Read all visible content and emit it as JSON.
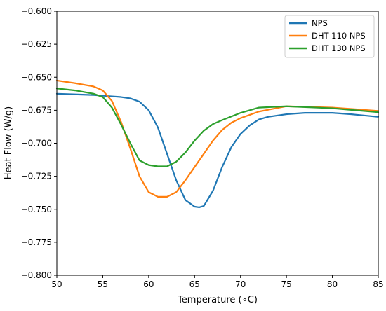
{
  "chart_data": {
    "type": "line",
    "title": "",
    "xlabel": "Temperature (∘C)",
    "ylabel": "Heat Flow (W/g)",
    "xlim": [
      50,
      85
    ],
    "ylim": [
      -0.8,
      -0.6
    ],
    "x_ticks": [
      50,
      55,
      60,
      65,
      70,
      75,
      80,
      85
    ],
    "y_ticks": [
      -0.8,
      -0.775,
      -0.75,
      -0.725,
      -0.7,
      -0.675,
      -0.65,
      -0.625,
      -0.6
    ],
    "x_tick_labels": [
      "50",
      "55",
      "60",
      "65",
      "70",
      "75",
      "80",
      "85"
    ],
    "y_tick_labels": [
      "−0.800",
      "−0.775",
      "−0.750",
      "−0.725",
      "−0.700",
      "−0.675",
      "−0.650",
      "−0.625",
      "−0.600"
    ],
    "grid": false,
    "legend_position": "top-right",
    "series": [
      {
        "name": "NPS",
        "color": "#1f77b4",
        "x": [
          50,
          52,
          54,
          56,
          57,
          58,
          59,
          60,
          61,
          62,
          63,
          64,
          65,
          65.5,
          66,
          67,
          68,
          69,
          70,
          71,
          72,
          73,
          75,
          77,
          80,
          82,
          85
        ],
        "y": [
          -0.6625,
          -0.663,
          -0.6635,
          -0.6645,
          -0.665,
          -0.666,
          -0.6685,
          -0.675,
          -0.688,
          -0.708,
          -0.728,
          -0.743,
          -0.748,
          -0.7485,
          -0.7475,
          -0.736,
          -0.718,
          -0.703,
          -0.693,
          -0.6865,
          -0.682,
          -0.68,
          -0.678,
          -0.677,
          -0.677,
          -0.678,
          -0.68
        ]
      },
      {
        "name": "DHT 110 NPS",
        "color": "#ff7f0e",
        "x": [
          50,
          52,
          54,
          55,
          56,
          57,
          58,
          59,
          60,
          61,
          62,
          63,
          64,
          65,
          66,
          67,
          68,
          69,
          70,
          72,
          75,
          80,
          85
        ],
        "y": [
          -0.6525,
          -0.6545,
          -0.657,
          -0.66,
          -0.668,
          -0.684,
          -0.704,
          -0.725,
          -0.737,
          -0.7405,
          -0.7405,
          -0.737,
          -0.728,
          -0.718,
          -0.708,
          -0.698,
          -0.69,
          -0.6845,
          -0.681,
          -0.676,
          -0.672,
          -0.673,
          -0.6755
        ]
      },
      {
        "name": "DHT 130 NPS",
        "color": "#2ca02c",
        "x": [
          50,
          52,
          54,
          55,
          56,
          57,
          58,
          59,
          60,
          61,
          62,
          63,
          64,
          65,
          66,
          67,
          68,
          70,
          72,
          75,
          80,
          85
        ],
        "y": [
          -0.6585,
          -0.66,
          -0.6625,
          -0.665,
          -0.673,
          -0.686,
          -0.7,
          -0.713,
          -0.7165,
          -0.7175,
          -0.7175,
          -0.714,
          -0.707,
          -0.698,
          -0.6905,
          -0.6855,
          -0.6825,
          -0.677,
          -0.673,
          -0.672,
          -0.6735,
          -0.6765
        ]
      }
    ]
  }
}
